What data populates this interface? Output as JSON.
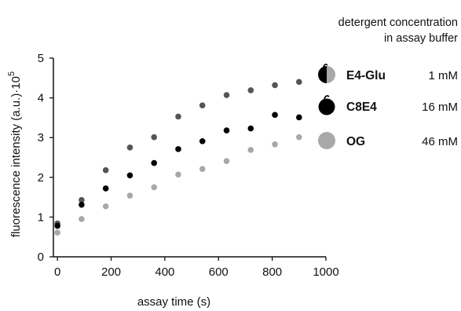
{
  "chart_data": {
    "type": "scatter",
    "xlabel": "assay time (s)",
    "ylabel": {
      "text": "fluorescence intensity (a.u.)·10",
      "exponent": "5"
    },
    "xlim": [
      -15,
      1000
    ],
    "ylim": [
      0,
      5
    ],
    "x_ticks": [
      0,
      200,
      400,
      600,
      800,
      1000
    ],
    "y_ticks": [
      0,
      1,
      2,
      3,
      4,
      5
    ],
    "grid": false,
    "legend": {
      "title_lines": [
        "detergent concentration",
        "in assay buffer"
      ],
      "position": "top-right"
    },
    "series": [
      {
        "name": "E4-Glu",
        "concentration": "1 mM",
        "color": "#555555",
        "x": [
          0,
          90,
          180,
          270,
          360,
          450,
          540,
          630,
          720,
          810,
          900
        ],
        "y": [
          0.84,
          1.43,
          2.18,
          2.75,
          3.01,
          3.53,
          3.81,
          4.07,
          4.19,
          4.32,
          4.4
        ]
      },
      {
        "name": "C8E4",
        "concentration": "16 mM",
        "color": "#000000",
        "x": [
          0,
          90,
          180,
          270,
          360,
          450,
          540,
          630,
          720,
          810,
          900
        ],
        "y": [
          0.78,
          1.31,
          1.72,
          2.05,
          2.36,
          2.71,
          2.91,
          3.18,
          3.23,
          3.57,
          3.51
        ]
      },
      {
        "name": "OG",
        "concentration": "46 mM",
        "color": "#a8a8a8",
        "x": [
          0,
          90,
          180,
          270,
          360,
          450,
          540,
          630,
          720,
          810,
          900
        ],
        "y": [
          0.61,
          0.95,
          1.27,
          1.54,
          1.75,
          2.07,
          2.21,
          2.41,
          2.69,
          2.83,
          3.01
        ]
      }
    ]
  }
}
